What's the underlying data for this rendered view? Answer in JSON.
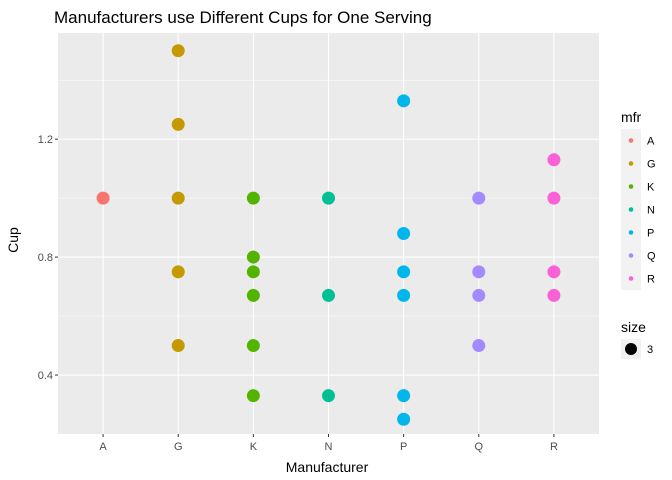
{
  "chart_data": {
    "type": "scatter",
    "title": "Manufacturers use Different Cups for One Serving",
    "xlabel": "Manufacturer",
    "ylabel": "Cup",
    "categories": [
      "A",
      "G",
      "K",
      "N",
      "P",
      "Q",
      "R"
    ],
    "ylim": [
      0.2,
      1.56
    ],
    "yticks": [
      0.4,
      0.8,
      1.2
    ],
    "ytick_labels": [
      "0.4",
      "0.8",
      "1.2"
    ],
    "grid": true,
    "legend_position": "right",
    "colors": {
      "A": "#F8766D",
      "G": "#C49A00",
      "K": "#53B400",
      "N": "#00C094",
      "P": "#00B6EB",
      "Q": "#A58AFF",
      "R": "#FB61D7"
    },
    "series": [
      {
        "name": "A",
        "points": [
          {
            "x": "A",
            "y": 1.0
          }
        ]
      },
      {
        "name": "G",
        "points": [
          {
            "x": "G",
            "y": 1.5
          },
          {
            "x": "G",
            "y": 1.25
          },
          {
            "x": "G",
            "y": 1.0
          },
          {
            "x": "G",
            "y": 0.75
          },
          {
            "x": "G",
            "y": 0.5
          }
        ]
      },
      {
        "name": "K",
        "points": [
          {
            "x": "K",
            "y": 1.0
          },
          {
            "x": "K",
            "y": 0.8
          },
          {
            "x": "K",
            "y": 0.75
          },
          {
            "x": "K",
            "y": 0.67
          },
          {
            "x": "K",
            "y": 0.5
          },
          {
            "x": "K",
            "y": 0.33
          }
        ]
      },
      {
        "name": "N",
        "points": [
          {
            "x": "N",
            "y": 1.0
          },
          {
            "x": "N",
            "y": 0.67
          },
          {
            "x": "N",
            "y": 0.33
          }
        ]
      },
      {
        "name": "P",
        "points": [
          {
            "x": "P",
            "y": 1.33
          },
          {
            "x": "P",
            "y": 0.88
          },
          {
            "x": "P",
            "y": 0.75
          },
          {
            "x": "P",
            "y": 0.67
          },
          {
            "x": "P",
            "y": 0.33
          },
          {
            "x": "P",
            "y": 0.25
          }
        ]
      },
      {
        "name": "Q",
        "points": [
          {
            "x": "Q",
            "y": 1.0
          },
          {
            "x": "Q",
            "y": 0.75
          },
          {
            "x": "Q",
            "y": 0.67
          },
          {
            "x": "Q",
            "y": 0.5
          }
        ]
      },
      {
        "name": "R",
        "points": [
          {
            "x": "R",
            "y": 1.13
          },
          {
            "x": "R",
            "y": 1.0
          },
          {
            "x": "R",
            "y": 0.75
          },
          {
            "x": "R",
            "y": 0.67
          }
        ]
      }
    ],
    "legend": {
      "color_title": "mfr",
      "color_items": [
        "A",
        "G",
        "K",
        "N",
        "P",
        "Q",
        "R"
      ],
      "size_title": "size",
      "size_items": [
        "3"
      ]
    },
    "point_size": 3
  }
}
